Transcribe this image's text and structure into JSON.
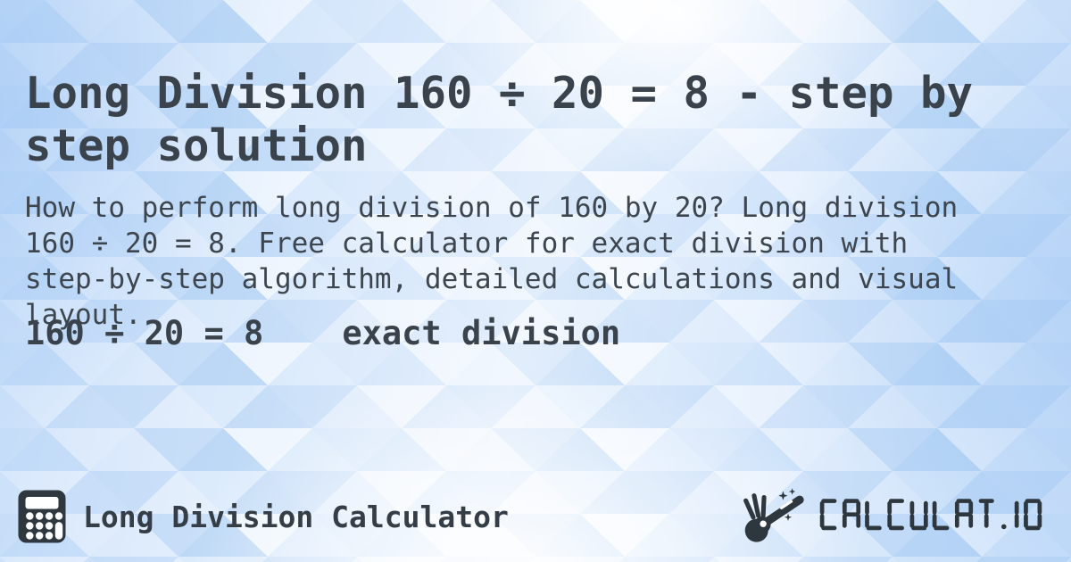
{
  "hero": {
    "title": "Long Division 160 ÷ 20 = 8 - step by step solution",
    "description": "How to perform long division of 160 by 20? Long division 160 ÷ 20 = 8. Free calculator for exact division with step-by-step algorithm, detailed calculations and visual layout.",
    "result_equation": "160 ÷ 20 = 8",
    "result_label": "exact division"
  },
  "footer": {
    "site_name": "Long Division Calculator",
    "logo_text": "CALCULAT.IO"
  },
  "icons": {
    "footer_left": "calculator-icon",
    "logo_left": "hand-magic-wand-icon"
  },
  "colors": {
    "text": "#3a424b",
    "icon_dark": "#2e363e",
    "background_base": "#e4eefc",
    "triangle_blues": [
      "#aecdf2",
      "#bcd8f6",
      "#c9dff8",
      "#d7e7fb",
      "#e7f1fd",
      "#f3f8ff",
      "#ffffff"
    ]
  }
}
